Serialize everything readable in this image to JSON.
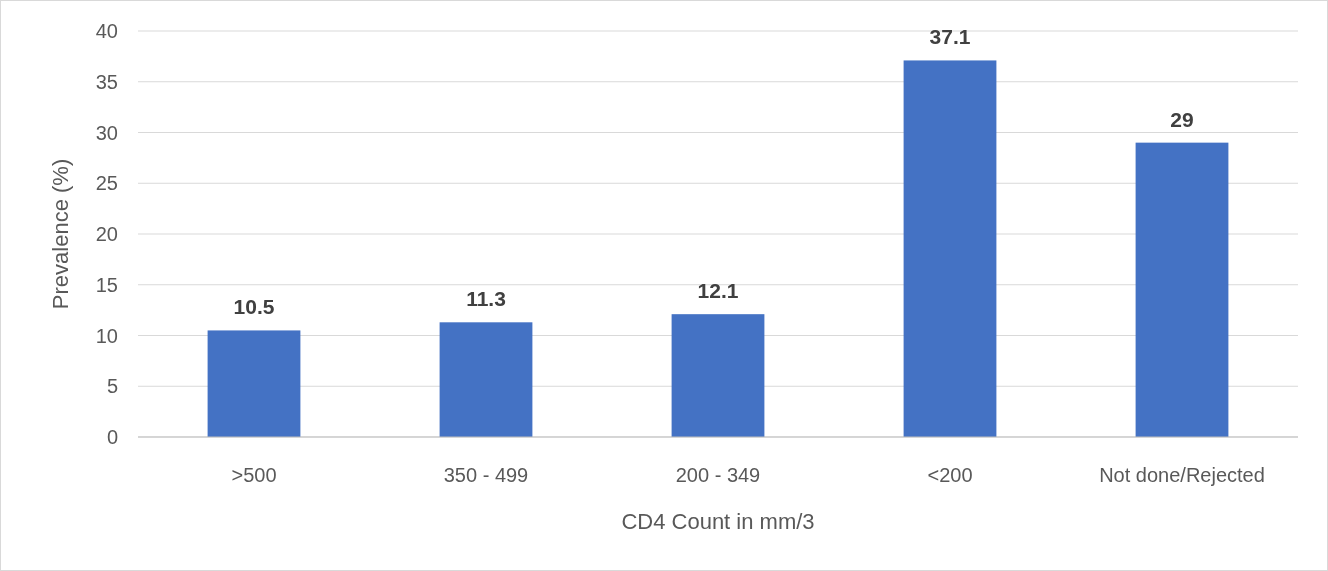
{
  "chart_data": {
    "type": "bar",
    "xlabel": "CD4 Count in mm/3",
    "ylabel": "Prevalence (%)",
    "categories": [
      ">500",
      "350 - 499",
      "200 - 349",
      "<200",
      "Not done/Rejected"
    ],
    "values": [
      10.5,
      11.3,
      12.1,
      37.1,
      29
    ],
    "color": "#4472c4",
    "ylim": [
      0,
      40
    ],
    "yticks": [
      0,
      5,
      10,
      15,
      20,
      25,
      30,
      35,
      40
    ],
    "grid": "y",
    "data_labels": true
  }
}
